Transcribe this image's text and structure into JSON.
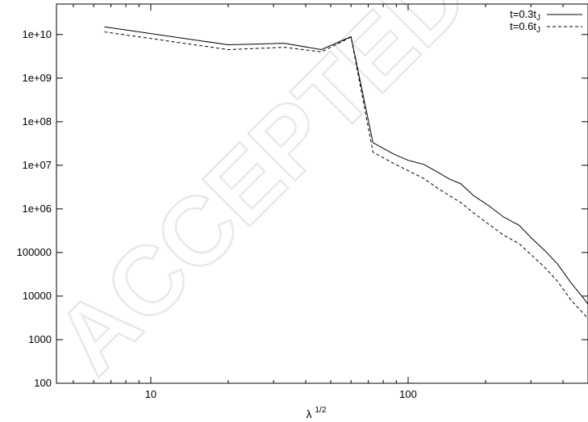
{
  "watermark": "ACCEPTED MANUSCRIPT",
  "chart_data": {
    "type": "line",
    "xlabel_base": "λ",
    "xlabel_exp": "1/2",
    "xscale": "log",
    "yscale": "log",
    "xlim": [
      4.3,
      500
    ],
    "ylim": [
      100,
      50000000000
    ],
    "grid": false,
    "legend": "top-right",
    "yticks": [
      {
        "value": 100,
        "label": "100"
      },
      {
        "value": 1000,
        "label": "1000"
      },
      {
        "value": 10000,
        "label": "10000"
      },
      {
        "value": 100000,
        "label": "100000"
      },
      {
        "value": 1000000,
        "label": "1e+06"
      },
      {
        "value": 10000000,
        "label": "1e+07"
      },
      {
        "value": 100000000,
        "label": "1e+08"
      },
      {
        "value": 1000000000,
        "label": "1e+09"
      },
      {
        "value": 10000000000,
        "label": "1e+10"
      }
    ],
    "xticks_major": [
      {
        "value": 10,
        "label": "10"
      },
      {
        "value": 100,
        "label": "100"
      }
    ],
    "xticks_minor": [
      5,
      6,
      7,
      8,
      9,
      20,
      30,
      40,
      50,
      60,
      70,
      80,
      90,
      200,
      300,
      400,
      500
    ],
    "series": [
      {
        "name_base": "t=0.3t",
        "name_sub": "J",
        "style": "solid",
        "x": [
          6.6,
          20,
          33,
          46,
          60,
          73,
          88,
          100,
          115,
          130,
          145,
          160,
          180,
          205,
          235,
          270,
          300,
          340,
          380,
          430,
          480,
          500
        ],
        "y": [
          15000000000,
          5800000000,
          6300000000,
          4500000000,
          8900000000,
          33000000,
          18000000,
          13000000,
          10500000,
          7000000,
          4800000,
          3800000,
          2000000,
          1200000,
          650000,
          420000,
          220000,
          110000,
          55000,
          20000,
          9000,
          6500
        ]
      },
      {
        "name_base": "t=0.6t",
        "name_sub": "J",
        "style": "dashed",
        "x": [
          6.6,
          20,
          33,
          46,
          60,
          73,
          88,
          100,
          115,
          130,
          145,
          160,
          180,
          205,
          235,
          270,
          300,
          340,
          380,
          430,
          480,
          500
        ],
        "y": [
          11500000000,
          4500000000,
          5100000000,
          4000000000,
          8700000000,
          20000000,
          11000000,
          7500000,
          5000000,
          3000000,
          2000000,
          1400000,
          800000,
          450000,
          250000,
          160000,
          90000,
          45000,
          22000,
          8000,
          4000,
          3000
        ]
      }
    ]
  }
}
